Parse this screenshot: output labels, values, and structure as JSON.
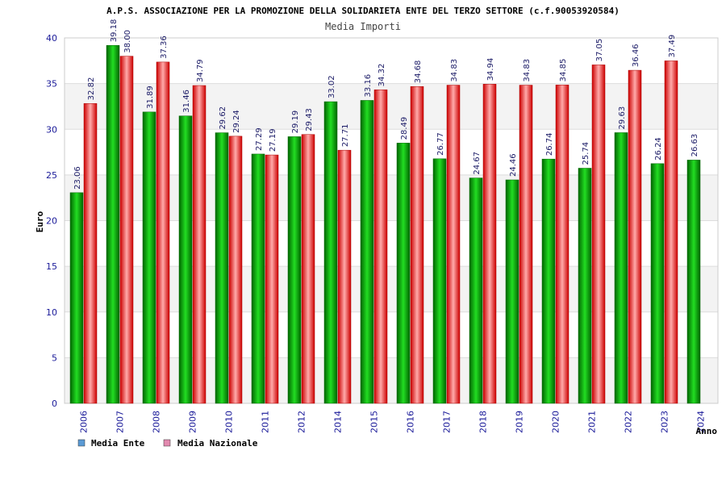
{
  "chart_data": {
    "type": "bar",
    "title": "A.P.S. ASSOCIAZIONE PER LA PROMOZIONE DELLA SOLIDARIETA ENTE DEL TERZO SETTORE (c.f.90053920584)",
    "subtitle": "Media Importi",
    "xlabel": "Anno",
    "ylabel": "Euro",
    "ylim": [
      0,
      40
    ],
    "yticks": [
      "0",
      "5",
      "10",
      "15",
      "20",
      "25",
      "30",
      "35",
      "40"
    ],
    "grid": true,
    "legend_position": "bottom-left",
    "categories": [
      "2006",
      "2007",
      "2008",
      "2009",
      "2010",
      "2011",
      "2012",
      "2014",
      "2015",
      "2016",
      "2017",
      "2018",
      "2019",
      "2020",
      "2021",
      "2022",
      "2023",
      "2024"
    ],
    "series": [
      {
        "name": "Media Ente",
        "legend_color": "#5b9bd5",
        "bar_color": "#00bb00",
        "values": [
          23.06,
          39.18,
          31.89,
          31.46,
          29.62,
          27.29,
          29.19,
          33.02,
          33.16,
          28.49,
          26.77,
          24.67,
          24.46,
          26.74,
          25.74,
          29.63,
          26.24,
          26.63
        ],
        "labels": [
          "23.06",
          "39.18",
          "31.89",
          "31.46",
          "29.62",
          "27.29",
          "29.19",
          "33.02",
          "33.16",
          "28.49",
          "26.77",
          "24.67",
          "24.46",
          "26.74",
          "25.74",
          "29.63",
          "26.24",
          "26.63"
        ]
      },
      {
        "name": "Media Nazionale",
        "legend_color": "#e38ab0",
        "bar_color": "#ee2222",
        "values": [
          32.82,
          38.0,
          37.36,
          34.79,
          29.24,
          27.19,
          29.43,
          27.71,
          34.32,
          34.68,
          34.83,
          34.94,
          34.83,
          34.85,
          37.05,
          36.46,
          37.49,
          null
        ],
        "labels": [
          "32.82",
          "38.00",
          "37.36",
          "34.79",
          "29.24",
          "27.19",
          "29.43",
          "27.71",
          "34.32",
          "34.68",
          "34.83",
          "34.94",
          "34.83",
          "34.85",
          "37.05",
          "36.46",
          "37.49",
          null
        ]
      }
    ]
  }
}
